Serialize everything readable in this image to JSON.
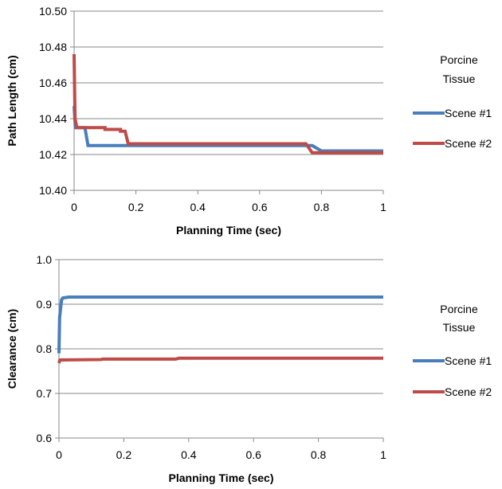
{
  "chart_data": [
    {
      "type": "line",
      "xlabel": "Planning Time (sec)",
      "ylabel": "Path Length (cm)",
      "xlim": [
        0,
        1
      ],
      "ylim": [
        10.4,
        10.5
      ],
      "xticks": [
        "0",
        "0.2",
        "0.4",
        "0.6",
        "0.8",
        "1"
      ],
      "yticks": [
        "10.40",
        "10.42",
        "10.44",
        "10.46",
        "10.48",
        "10.50"
      ],
      "grid": "horizontal",
      "legend": {
        "title": [
          "Porcine",
          "Tissue"
        ],
        "placement": "right"
      },
      "series": [
        {
          "name": "Scene #1",
          "color": "#4a7ebb",
          "points": [
            [
              0.0,
              10.447
            ],
            [
              0.004,
              10.435
            ],
            [
              0.035,
              10.435
            ],
            [
              0.045,
              10.425
            ],
            [
              0.77,
              10.425
            ],
            [
              0.8,
              10.422
            ],
            [
              1.0,
              10.422
            ]
          ]
        },
        {
          "name": "Scene #2",
          "color": "#be4b48",
          "points": [
            [
              0.0,
              10.476
            ],
            [
              0.003,
              10.44
            ],
            [
              0.009,
              10.435
            ],
            [
              0.1,
              10.435
            ],
            [
              0.1,
              10.434
            ],
            [
              0.15,
              10.434
            ],
            [
              0.15,
              10.433
            ],
            [
              0.165,
              10.433
            ],
            [
              0.175,
              10.426
            ],
            [
              0.75,
              10.426
            ],
            [
              0.77,
              10.421
            ],
            [
              1.0,
              10.421
            ]
          ]
        }
      ]
    },
    {
      "type": "line",
      "xlabel": "Planning Time (sec)",
      "ylabel": "Clearance (cm)",
      "xlim": [
        0,
        1
      ],
      "ylim": [
        0.6,
        1.0
      ],
      "xticks": [
        "0",
        "0.2",
        "0.4",
        "0.6",
        "0.8",
        "1"
      ],
      "yticks": [
        "0.6",
        "0.7",
        "0.8",
        "0.9",
        "1.0"
      ],
      "grid": "horizontal",
      "legend": {
        "title": [
          "Porcine",
          "Tissue"
        ],
        "placement": "right"
      },
      "series": [
        {
          "name": "Scene #1",
          "color": "#4a7ebb",
          "points": [
            [
              0.0,
              0.79
            ],
            [
              0.002,
              0.87
            ],
            [
              0.008,
              0.91
            ],
            [
              0.012,
              0.914
            ],
            [
              0.03,
              0.916
            ],
            [
              1.0,
              0.916
            ]
          ]
        },
        {
          "name": "Scene #2",
          "color": "#be4b48",
          "points": [
            [
              0.0,
              0.768
            ],
            [
              0.003,
              0.775
            ],
            [
              0.13,
              0.776
            ],
            [
              0.135,
              0.777
            ],
            [
              0.36,
              0.777
            ],
            [
              0.37,
              0.779
            ],
            [
              1.0,
              0.779
            ]
          ]
        }
      ]
    }
  ]
}
